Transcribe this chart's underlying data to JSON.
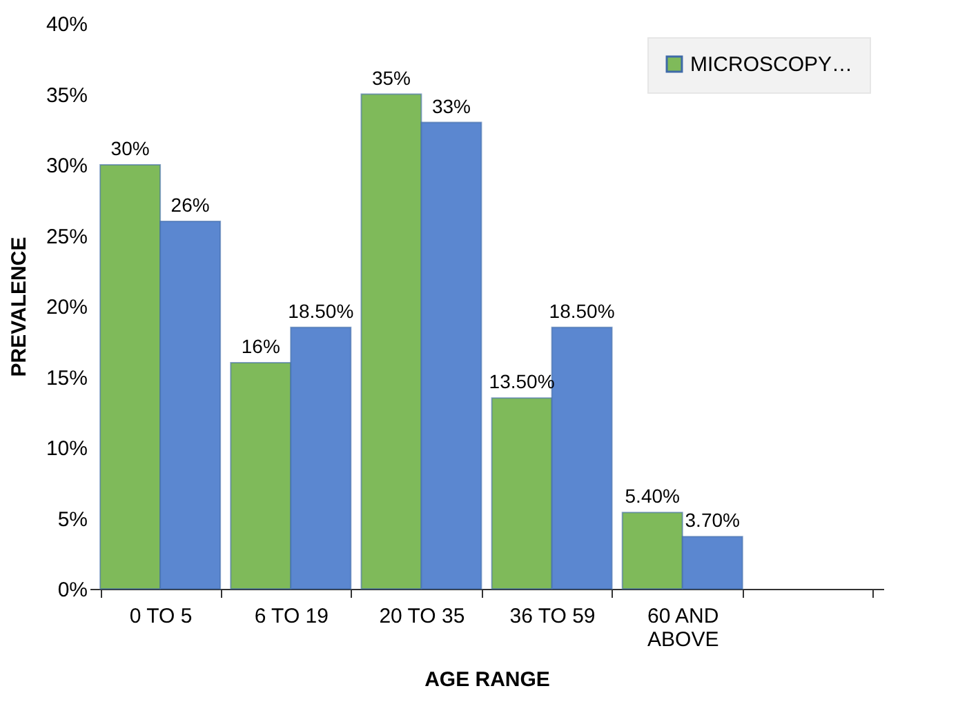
{
  "chart_data": {
    "type": "bar",
    "xlabel": "AGE RANGE",
    "ylabel": "PREVALENCE",
    "categories": [
      "0 TO 5",
      "6 TO 19",
      "20 TO 35",
      "36 TO 59",
      "60 AND ABOVE",
      null
    ],
    "series": [
      {
        "name": "MICROSCOPY…",
        "color": "#7fba5a",
        "values": [
          30,
          16,
          35,
          13.5,
          5.4,
          null
        ],
        "value_labels": [
          "30%",
          "16%",
          "35%",
          "13.50%",
          "5.40%",
          null
        ]
      },
      {
        "color": "#5b87d0",
        "values": [
          26,
          18.5,
          33,
          18.5,
          3.7,
          null
        ],
        "value_labels": [
          "26%",
          "18.50%",
          "33%",
          "18.50%",
          "3.70%",
          null
        ]
      }
    ],
    "ylim": [
      0,
      40
    ],
    "yticks": [
      {
        "value": 0,
        "label": "0%"
      },
      {
        "value": 5,
        "label": "5%"
      },
      {
        "value": 10,
        "label": "10%"
      },
      {
        "value": 15,
        "label": "15%"
      },
      {
        "value": 20,
        "label": "20%"
      },
      {
        "value": 25,
        "label": "25%"
      },
      {
        "value": 30,
        "label": "30%"
      },
      {
        "value": 35,
        "label": "35%"
      },
      {
        "value": 40,
        "label": "40%"
      }
    ],
    "grid": false,
    "legend": "top right"
  }
}
